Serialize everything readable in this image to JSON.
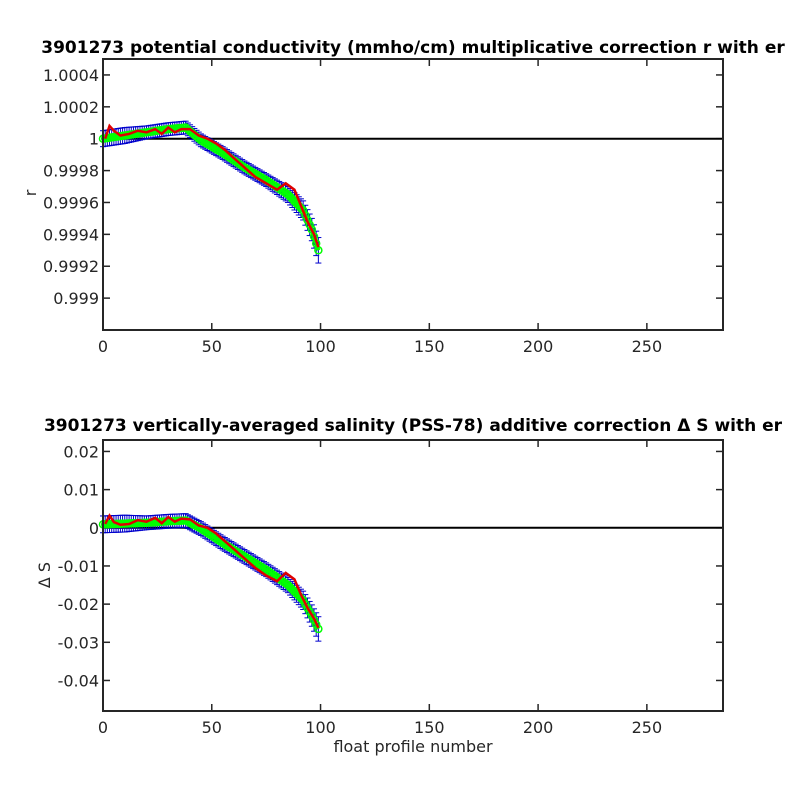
{
  "chart_data": [
    {
      "type": "line",
      "title": "3901273 potential conductivity (mmho/cm) multiplicative correction r with er",
      "xlabel": "",
      "ylabel": "r",
      "xlim": [
        0,
        285
      ],
      "ylim": [
        0.9988,
        1.0005
      ],
      "xticks": [
        0,
        50,
        100,
        150,
        200,
        250
      ],
      "yticks": [
        0.999,
        0.9992,
        0.9994,
        0.9996,
        0.9998,
        1,
        1.0002,
        1.0004
      ],
      "ytick_labels": [
        "0.999",
        "0.9992",
        "0.9994",
        "0.9996",
        "0.9998",
        "1",
        "1.0002",
        "1.0004"
      ],
      "reference_line": 1,
      "colors": {
        "fit": "#00ff00",
        "error": "#0000cc",
        "data": "#e00000",
        "reference": "#000000"
      },
      "series": [
        {
          "x": [
            0,
            10,
            20,
            30,
            38,
            45,
            55,
            65,
            75,
            85,
            92,
            96,
            99
          ],
          "y": [
            1.0,
            1.00002,
            1.00004,
            1.00006,
            1.00007,
            0.99999,
            0.99991,
            0.99982,
            0.99974,
            0.99965,
            0.99955,
            0.99943,
            0.9993
          ],
          "err": [
            5e-05,
            5e-05,
            4e-05,
            4e-05,
            4e-05,
            4e-05,
            4e-05,
            4e-05,
            4e-05,
            5e-05,
            6e-05,
            7e-05,
            8e-05
          ]
        },
        {
          "x": [
            1,
            3,
            5,
            8,
            12,
            16,
            20,
            24,
            27,
            30,
            33,
            36,
            40,
            44,
            48,
            52,
            56,
            60,
            65,
            70,
            75,
            80,
            84,
            88,
            91,
            94,
            97,
            99
          ],
          "y": [
            1.0,
            1.00008,
            1.00005,
            1.00002,
            1.00003,
            1.00005,
            1.00004,
            1.00006,
            1.00003,
            1.00007,
            1.00004,
            1.00006,
            1.00006,
            1.00002,
            1.0,
            0.99997,
            0.99993,
            0.99988,
            0.99982,
            0.99976,
            0.99972,
            0.99968,
            0.99972,
            0.99968,
            0.99958,
            0.99948,
            0.9994,
            0.99932
          ]
        }
      ]
    },
    {
      "type": "line",
      "title": "3901273 vertically-averaged salinity (PSS-78) additive correction Δ S with er",
      "xlabel": "float profile number",
      "ylabel": "Δ S",
      "xlim": [
        0,
        285
      ],
      "ylim": [
        -0.048,
        0.023
      ],
      "xticks": [
        0,
        50,
        100,
        150,
        200,
        250
      ],
      "yticks": [
        -0.04,
        -0.03,
        -0.02,
        -0.01,
        0,
        0.01,
        0.02
      ],
      "ytick_labels": [
        "-0.04",
        "-0.03",
        "-0.02",
        "-0.01",
        "0",
        "0.01",
        "0.02"
      ],
      "reference_line": 0,
      "colors": {
        "fit": "#00ff00",
        "error": "#0000cc",
        "data": "#e00000",
        "reference": "#000000"
      },
      "series": [
        {
          "x": [
            0,
            10,
            20,
            30,
            38,
            45,
            55,
            65,
            75,
            85,
            92,
            96,
            99
          ],
          "y": [
            0.0009,
            0.0011,
            0.0013,
            0.0017,
            0.0019,
            -0.0002,
            -0.004,
            -0.0075,
            -0.011,
            -0.015,
            -0.019,
            -0.023,
            -0.0265
          ],
          "err": [
            0.0022,
            0.0022,
            0.0018,
            0.0018,
            0.0018,
            0.0018,
            0.0018,
            0.0018,
            0.0018,
            0.002,
            0.0024,
            0.0028,
            0.0032
          ]
        },
        {
          "x": [
            1,
            3,
            5,
            8,
            12,
            16,
            20,
            24,
            27,
            30,
            33,
            36,
            40,
            44,
            48,
            52,
            56,
            60,
            65,
            70,
            75,
            80,
            84,
            88,
            91,
            94,
            97,
            99
          ],
          "y": [
            0.001,
            0.0032,
            0.0015,
            0.0008,
            0.001,
            0.002,
            0.0016,
            0.0026,
            0.0012,
            0.0028,
            0.0016,
            0.0024,
            0.0022,
            0.0006,
            0.0,
            -0.0015,
            -0.0035,
            -0.0055,
            -0.008,
            -0.0105,
            -0.0125,
            -0.014,
            -0.0118,
            -0.0135,
            -0.0175,
            -0.021,
            -0.0238,
            -0.0262
          ]
        }
      ]
    }
  ]
}
